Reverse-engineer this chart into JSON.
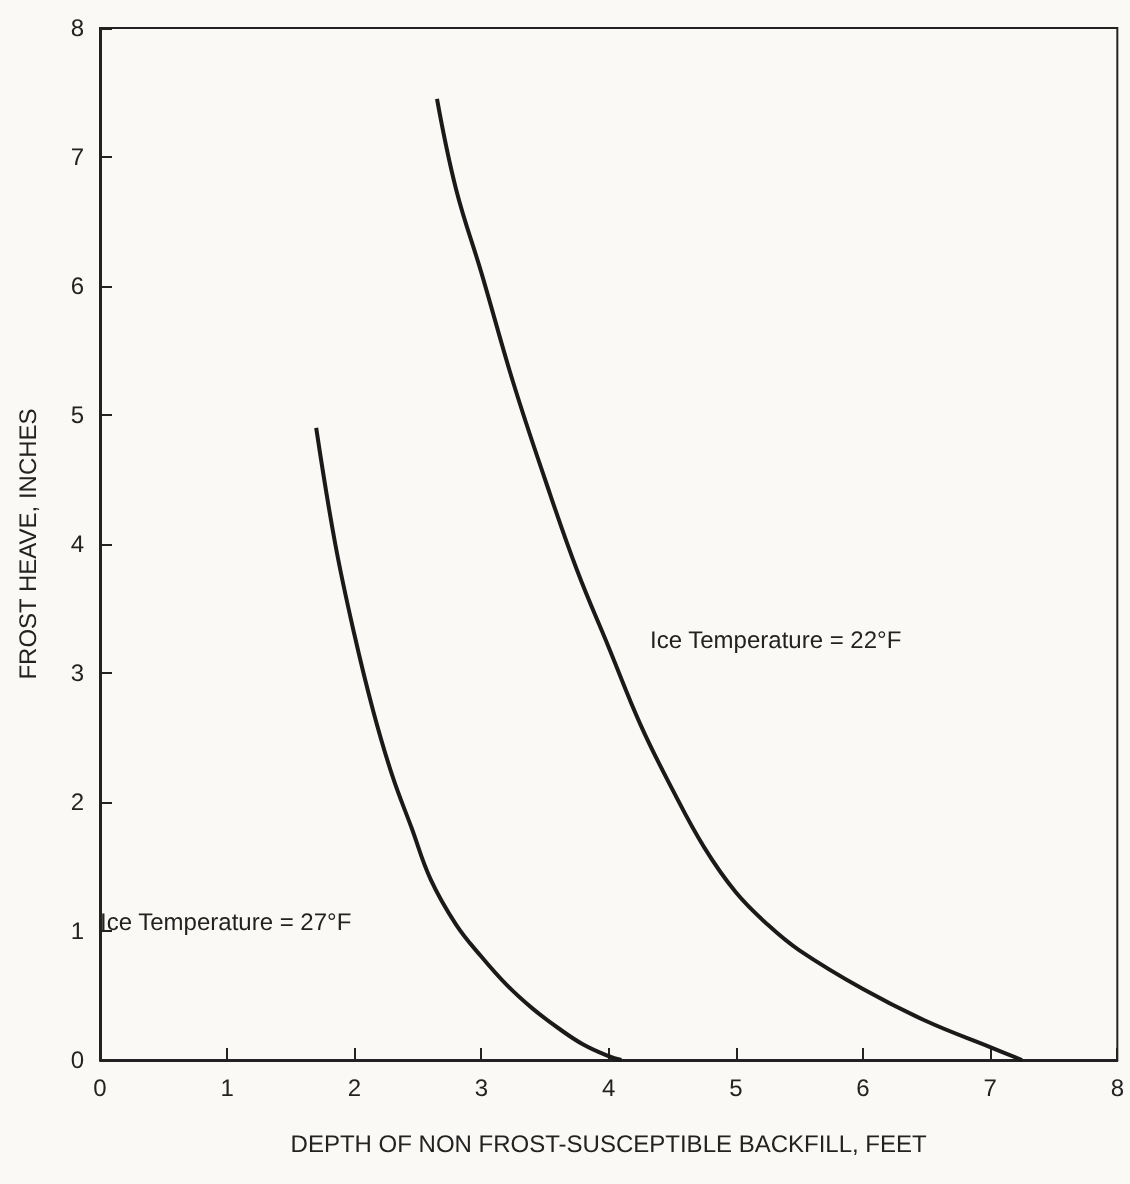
{
  "chart_data": {
    "type": "line",
    "xlabel": "DEPTH OF NON FROST-SUSCEPTIBLE BACKFILL, FEET",
    "ylabel": "FROST HEAVE, INCHES",
    "series": [
      {
        "color": "#1a1a1a",
        "x": [
          1.7,
          1.85,
          2.0,
          2.15,
          2.3,
          2.45,
          2.6,
          2.8,
          3.0,
          3.2,
          3.4,
          3.6,
          3.8,
          4.0,
          4.1
        ],
        "values": [
          4.9,
          4.0,
          3.3,
          2.7,
          2.2,
          1.8,
          1.4,
          1.05,
          0.8,
          0.58,
          0.4,
          0.25,
          0.12,
          0.03,
          0
        ]
      },
      {
        "color": "#1a1a1a",
        "x": [
          2.65,
          2.8,
          3.0,
          3.25,
          3.5,
          3.75,
          4.0,
          4.25,
          4.5,
          4.75,
          5.0,
          5.25,
          5.5,
          6.0,
          6.5,
          7.0,
          7.25
        ],
        "values": [
          7.45,
          6.75,
          6.1,
          5.25,
          4.5,
          3.8,
          3.2,
          2.6,
          2.1,
          1.65,
          1.3,
          1.05,
          0.85,
          0.55,
          0.3,
          0.1,
          0
        ]
      }
    ],
    "annotations": [
      "Ice Temperature = 22°F",
      "Ice Temperature = 27°F"
    ],
    "xlim": [
      0,
      8
    ],
    "xticks": [
      0,
      1,
      2,
      3,
      4,
      5,
      6,
      7,
      8
    ],
    "ylim": [
      0,
      8
    ],
    "yticks": [
      0,
      1,
      2,
      3,
      4,
      5,
      6,
      7,
      8
    ],
    "grid": false,
    "marker": "none",
    "line_style": "solid"
  }
}
